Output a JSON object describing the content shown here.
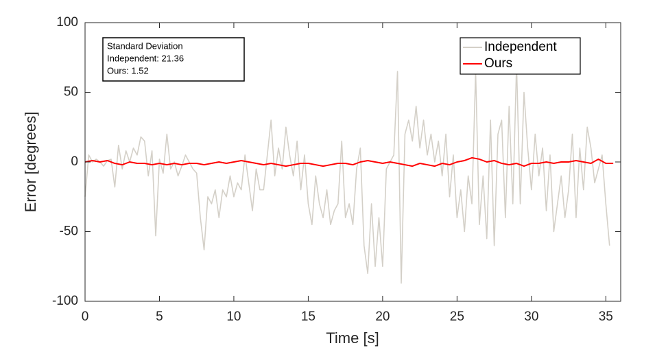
{
  "chart_data": {
    "type": "line",
    "xlabel": "Time [s]",
    "ylabel": "Error [degrees]",
    "annotation": [
      "Standard Deviation",
      "Independent: 21.36",
      "Ours: 1.52"
    ],
    "legend": "northeast",
    "xlim": [
      0,
      36
    ],
    "xticks": [
      0,
      5,
      10,
      15,
      20,
      25,
      30,
      35
    ],
    "ylim": [
      -100,
      100
    ],
    "yticks": [
      -100,
      -50,
      0,
      50,
      100
    ],
    "series": [
      {
        "name": "Independent",
        "color": "#d4d0c8",
        "x": [
          0,
          0.25,
          0.5,
          0.75,
          1,
          1.25,
          1.5,
          1.75,
          2,
          2.25,
          2.5,
          2.75,
          3,
          3.25,
          3.5,
          3.75,
          4,
          4.25,
          4.5,
          4.75,
          5,
          5.25,
          5.5,
          5.75,
          6,
          6.25,
          6.5,
          6.75,
          7,
          7.25,
          7.5,
          7.75,
          8,
          8.25,
          8.5,
          8.75,
          9,
          9.25,
          9.5,
          9.75,
          10,
          10.25,
          10.5,
          10.75,
          11,
          11.25,
          11.5,
          11.75,
          12,
          12.25,
          12.5,
          12.75,
          13,
          13.25,
          13.5,
          13.75,
          14,
          14.25,
          14.5,
          14.75,
          15,
          15.25,
          15.5,
          15.75,
          16,
          16.25,
          16.5,
          16.75,
          17,
          17.25,
          17.5,
          17.75,
          18,
          18.25,
          18.5,
          18.75,
          19,
          19.25,
          19.5,
          19.75,
          20,
          20.25,
          20.5,
          20.75,
          21,
          21.25,
          21.5,
          21.75,
          22,
          22.25,
          22.5,
          22.75,
          23,
          23.25,
          23.5,
          23.75,
          24,
          24.25,
          24.5,
          24.75,
          25,
          25.25,
          25.5,
          25.75,
          26,
          26.25,
          26.5,
          26.75,
          27,
          27.25,
          27.5,
          27.75,
          28,
          28.25,
          28.5,
          28.75,
          29,
          29.25,
          29.5,
          29.75,
          30,
          30.25,
          30.5,
          30.75,
          31,
          31.25,
          31.5,
          31.75,
          32,
          32.25,
          32.5,
          32.75,
          33,
          33.25,
          33.5,
          33.75,
          34,
          34.25,
          34.5,
          34.75,
          35,
          35.25
        ],
        "values": [
          -25,
          5,
          0,
          2,
          0,
          -3,
          1,
          2,
          -18,
          12,
          -5,
          8,
          0,
          10,
          5,
          18,
          15,
          -10,
          8,
          -53,
          2,
          -8,
          20,
          -5,
          0,
          -10,
          -3,
          5,
          0,
          -5,
          -8,
          -40,
          -63,
          -25,
          -30,
          -20,
          -40,
          -20,
          -25,
          -10,
          -25,
          -15,
          -20,
          5,
          -15,
          -35,
          -5,
          -20,
          -20,
          5,
          30,
          -10,
          10,
          -5,
          25,
          5,
          -10,
          15,
          -20,
          5,
          -30,
          -45,
          -10,
          -30,
          -40,
          -20,
          -45,
          -35,
          -30,
          15,
          -40,
          -30,
          -45,
          -5,
          10,
          -60,
          -80,
          -30,
          -75,
          -40,
          -75,
          -5,
          0,
          5,
          65,
          -87,
          20,
          30,
          15,
          40,
          10,
          30,
          5,
          20,
          0,
          15,
          -10,
          20,
          -25,
          5,
          -40,
          -20,
          -50,
          -10,
          -30,
          65,
          -45,
          -10,
          -55,
          30,
          -60,
          20,
          30,
          -40,
          40,
          -30,
          70,
          -30,
          50,
          10,
          -20,
          20,
          -10,
          10,
          -35,
          5,
          -50,
          -30,
          -10,
          -40,
          -20,
          20,
          -40,
          10,
          -20,
          25,
          10,
          -15,
          -5,
          5,
          -30,
          -60
        ]
      },
      {
        "name": "Ours",
        "color": "#ff0000",
        "x": [
          0,
          0.5,
          1,
          1.5,
          2,
          2.5,
          3,
          3.5,
          4,
          4.5,
          5,
          5.5,
          6,
          6.5,
          7,
          7.5,
          8,
          8.5,
          9,
          9.5,
          10,
          10.5,
          11,
          11.5,
          12,
          12.5,
          13,
          13.5,
          14,
          14.5,
          15,
          15.5,
          16,
          16.5,
          17,
          17.5,
          18,
          18.5,
          19,
          19.5,
          20,
          20.5,
          21,
          21.5,
          22,
          22.5,
          23,
          23.5,
          24,
          24.5,
          25,
          25.5,
          26,
          26.5,
          27,
          27.5,
          28,
          28.5,
          29,
          29.5,
          30,
          30.5,
          31,
          31.5,
          32,
          32.5,
          33,
          33.5,
          34,
          34.5,
          35,
          35.5
        ],
        "values": [
          0,
          1,
          0,
          1,
          -1,
          -2,
          0,
          -1,
          -1,
          -2,
          -1,
          -2,
          -1,
          -2,
          -1,
          -1,
          -2,
          -1,
          0,
          -1,
          0,
          1,
          0,
          -1,
          -2,
          -1,
          -2,
          -3,
          -2,
          -1,
          -1,
          -2,
          -3,
          -2,
          -1,
          -1,
          -2,
          0,
          1,
          0,
          -1,
          0,
          -1,
          -2,
          -3,
          -1,
          -2,
          -3,
          -1,
          -2,
          0,
          1,
          3,
          2,
          0,
          1,
          -1,
          -2,
          -1,
          -3,
          -1,
          -1,
          0,
          -1,
          0,
          0,
          1,
          0,
          -1,
          2,
          -1,
          -1
        ]
      }
    ]
  }
}
